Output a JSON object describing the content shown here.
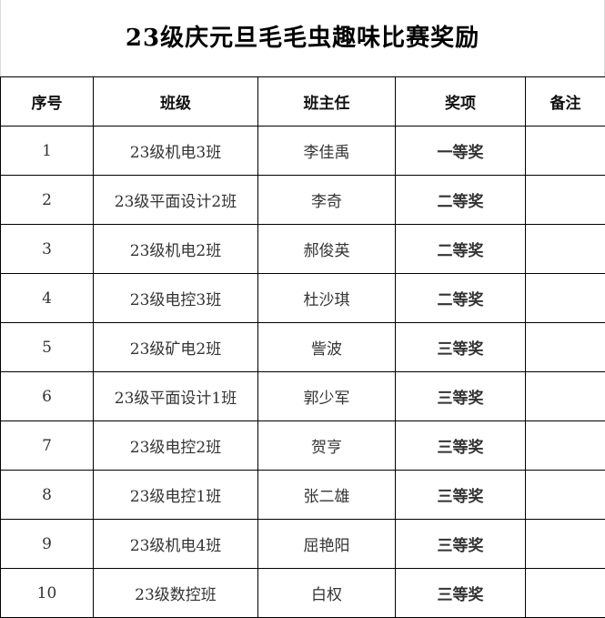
{
  "title": "23级庆元旦毛毛虫趣味比赛奖励",
  "headers": {
    "index": "序号",
    "class": "班级",
    "teacher": "班主任",
    "award": "奖项",
    "remark": "备注"
  },
  "colors": {
    "first_prize": "#ff0000",
    "second_prize": "#1f7fc1",
    "third_prize": "#7b3fa0"
  },
  "rows": [
    {
      "index": "1",
      "class": "23级机电3班",
      "teacher": "李佳禹",
      "award": "一等奖",
      "level": "first",
      "remark": ""
    },
    {
      "index": "2",
      "class": "23级平面设计2班",
      "teacher": "李奇",
      "award": "二等奖",
      "level": "second",
      "remark": ""
    },
    {
      "index": "3",
      "class": "23级机电2班",
      "teacher": "郝俊英",
      "award": "二等奖",
      "level": "second",
      "remark": ""
    },
    {
      "index": "4",
      "class": "23级电控3班",
      "teacher": "杜沙琪",
      "award": "二等奖",
      "level": "second",
      "remark": ""
    },
    {
      "index": "5",
      "class": "23级矿电2班",
      "teacher": "訾波",
      "award": "三等奖",
      "level": "third",
      "remark": ""
    },
    {
      "index": "6",
      "class": "23级平面设计1班",
      "teacher": "郭少军",
      "award": "三等奖",
      "level": "third",
      "remark": ""
    },
    {
      "index": "7",
      "class": "23级电控2班",
      "teacher": "贺亨",
      "award": "三等奖",
      "level": "third",
      "remark": ""
    },
    {
      "index": "8",
      "class": "23级电控1班",
      "teacher": "张二雄",
      "award": "三等奖",
      "level": "third",
      "remark": ""
    },
    {
      "index": "9",
      "class": "23级机电4班",
      "teacher": "屈艳阳",
      "award": "三等奖",
      "level": "third",
      "remark": ""
    },
    {
      "index": "10",
      "class": "23级数控班",
      "teacher": "白权",
      "award": "三等奖",
      "level": "third",
      "remark": ""
    }
  ]
}
